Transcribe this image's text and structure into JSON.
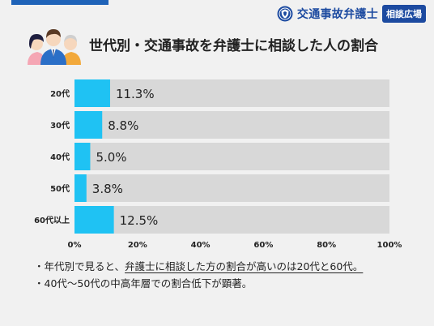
{
  "brand": {
    "name": "交通事故弁護士",
    "badge": "相談広場",
    "logo_icon": "shield-crest-icon",
    "color": "#1c4aa0"
  },
  "header": {
    "title": "世代別・交通事故を弁護士に相談した人の割合",
    "illustration_icon": "people-group-icon"
  },
  "chart_data": {
    "type": "bar",
    "orientation": "horizontal",
    "title": "世代別・交通事故を弁護士に相談した人の割合",
    "categories": [
      "20代",
      "30代",
      "40代",
      "50代",
      "60代以上"
    ],
    "values": [
      11.3,
      8.8,
      5.0,
      3.8,
      12.5
    ],
    "value_labels": [
      "11.3%",
      "8.8%",
      "5.0%",
      "3.8%",
      "12.5%"
    ],
    "xlim": [
      0,
      100
    ],
    "xticks": [
      "0%",
      "20%",
      "40%",
      "60%",
      "80%",
      "100%"
    ],
    "grid": false,
    "legend": "none",
    "bar_color": "#1fc2f3",
    "track_color": "#d8d8d8"
  },
  "notes": [
    {
      "prefix": "・年代別で見ると、",
      "emphasis": "弁護士に相談した方の割合が高いのは20代と60代。"
    },
    {
      "prefix": "・40代〜50代の中高年層での割合低下が顕著。",
      "emphasis": ""
    }
  ]
}
